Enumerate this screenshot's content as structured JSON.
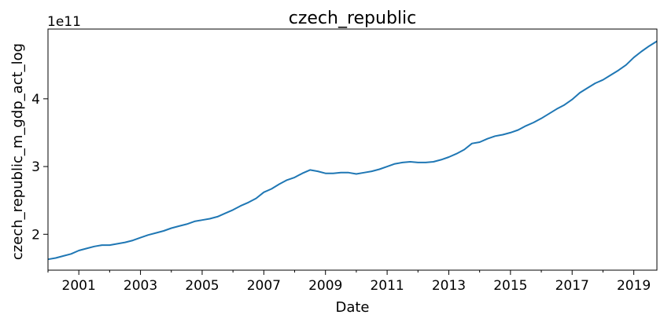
{
  "chart_data": {
    "type": "line",
    "title": "czech_republic",
    "xlabel": "Date",
    "ylabel": "czech_republic_m_gdp_act_log",
    "y_offset_label": "1e11",
    "y_scale_factor": 100000000000.0,
    "xlim": [
      "2000-01-01",
      "2019-10-01"
    ],
    "ylim": [
      1.47,
      5.03
    ],
    "x_ticks": [
      "2001",
      "2003",
      "2005",
      "2007",
      "2009",
      "2011",
      "2013",
      "2015",
      "2017",
      "2019"
    ],
    "y_ticks": [
      "2",
      "3",
      "4"
    ],
    "grid": false,
    "legend": "none",
    "color": "#1f77b4",
    "series": [
      {
        "x": [
          "2000-01-01",
          "2000-04-01",
          "2000-07-01",
          "2000-10-01",
          "2001-01-01",
          "2001-04-01",
          "2001-07-01",
          "2001-10-01",
          "2002-01-01",
          "2002-04-01",
          "2002-07-01",
          "2002-10-01",
          "2003-01-01",
          "2003-04-01",
          "2003-07-01",
          "2003-10-01",
          "2004-01-01",
          "2004-04-01",
          "2004-07-01",
          "2004-10-01",
          "2005-01-01",
          "2005-04-01",
          "2005-07-01",
          "2005-10-01",
          "2006-01-01",
          "2006-04-01",
          "2006-07-01",
          "2006-10-01",
          "2007-01-01",
          "2007-04-01",
          "2007-07-01",
          "2007-10-01",
          "2008-01-01",
          "2008-04-01",
          "2008-07-01",
          "2008-10-01",
          "2009-01-01",
          "2009-04-01",
          "2009-07-01",
          "2009-10-01",
          "2010-01-01",
          "2010-04-01",
          "2010-07-01",
          "2010-10-01",
          "2011-01-01",
          "2011-04-01",
          "2011-07-01",
          "2011-10-01",
          "2012-01-01",
          "2012-04-01",
          "2012-07-01",
          "2012-10-01",
          "2013-01-01",
          "2013-04-01",
          "2013-07-01",
          "2013-10-01",
          "2014-01-01",
          "2014-04-01",
          "2014-07-01",
          "2014-10-01",
          "2015-01-01",
          "2015-04-01",
          "2015-07-01",
          "2015-10-01",
          "2016-01-01",
          "2016-04-01",
          "2016-07-01",
          "2016-10-01",
          "2017-01-01",
          "2017-04-01",
          "2017-07-01",
          "2017-10-01",
          "2018-01-01",
          "2018-04-01",
          "2018-07-01",
          "2018-10-01",
          "2019-01-01",
          "2019-04-01",
          "2019-07-01",
          "2019-10-01"
        ],
        "y": [
          1.63,
          1.65,
          1.68,
          1.71,
          1.76,
          1.79,
          1.82,
          1.84,
          1.84,
          1.86,
          1.88,
          1.91,
          1.95,
          1.99,
          2.02,
          2.05,
          2.09,
          2.12,
          2.15,
          2.19,
          2.21,
          2.23,
          2.26,
          2.31,
          2.36,
          2.42,
          2.47,
          2.53,
          2.62,
          2.67,
          2.74,
          2.8,
          2.84,
          2.9,
          2.95,
          2.93,
          2.9,
          2.9,
          2.91,
          2.91,
          2.89,
          2.91,
          2.93,
          2.96,
          3.0,
          3.04,
          3.06,
          3.07,
          3.06,
          3.06,
          3.07,
          3.1,
          3.14,
          3.19,
          3.25,
          3.34,
          3.36,
          3.41,
          3.45,
          3.47,
          3.5,
          3.54,
          3.6,
          3.65,
          3.71,
          3.78,
          3.85,
          3.91,
          3.99,
          4.09,
          4.16,
          4.23,
          4.28,
          4.35,
          4.42,
          4.5,
          4.61,
          4.7,
          4.78,
          4.85
        ]
      }
    ]
  }
}
